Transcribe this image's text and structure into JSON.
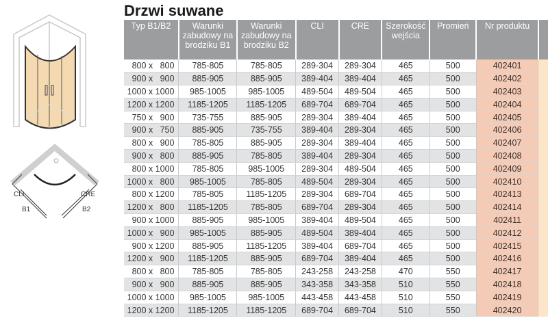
{
  "title": "Drzwi suwane",
  "diagram_labels": {
    "cli": "CLI",
    "cre": "CRE",
    "b1": "B1",
    "b2": "B2"
  },
  "colors": {
    "header": "#9c9d9f",
    "row_alt": "#e2e3e5",
    "product_col": "#f6cbb6",
    "extra_col": "#fde5c9",
    "glass": "#f5d9b0"
  },
  "headers": [
    "Typ B1/B2",
    "Warunki zabudowy na brodziku B1",
    "Warunki zabudowy na brodziku B2",
    "CLI",
    "CRE",
    "Szerokość wejścia",
    "Promień",
    "Nr produktu"
  ],
  "rows": [
    [
      "800 x   800",
      "785-805",
      "785-805",
      "289-304",
      "289-304",
      "465",
      "500",
      "402401"
    ],
    [
      "900 x   900",
      "885-905",
      "885-905",
      "389-404",
      "389-404",
      "465",
      "500",
      "402402"
    ],
    [
      "1000 x 1000",
      "985-1005",
      "985-1005",
      "489-504",
      "489-504",
      "465",
      "500",
      "402403"
    ],
    [
      "1200 x 1200",
      "1185-1205",
      "1185-1205",
      "689-704",
      "689-704",
      "465",
      "500",
      "402404"
    ],
    [
      "750 x   900",
      "735-755",
      "885-905",
      "289-304",
      "389-404",
      "465",
      "500",
      "402405"
    ],
    [
      "900 x   750",
      "885-905",
      "735-755",
      "389-404",
      "289-304",
      "465",
      "500",
      "402406"
    ],
    [
      "800 x   900",
      "785-805",
      "885-905",
      "289-304",
      "389-404",
      "465",
      "500",
      "402407"
    ],
    [
      "900 x   800",
      "885-905",
      "785-805",
      "389-404",
      "289-304",
      "465",
      "500",
      "402408"
    ],
    [
      "800 x 1000",
      "785-805",
      "985-1005",
      "289-304",
      "489-504",
      "465",
      "500",
      "402409"
    ],
    [
      "1000 x   800",
      "985-1005",
      "785-805",
      "489-504",
      "289-304",
      "465",
      "500",
      "402410"
    ],
    [
      "800 x 1200",
      "785-805",
      "1185-1205",
      "289-304",
      "689-704",
      "465",
      "500",
      "402413"
    ],
    [
      "1200 x   800",
      "1185-1205",
      "785-805",
      "689-704",
      "289-304",
      "465",
      "500",
      "402414"
    ],
    [
      "900 x 1000",
      "885-905",
      "985-1005",
      "389-404",
      "489-504",
      "465",
      "500",
      "402411"
    ],
    [
      "1000 x   900",
      "985-1005",
      "885-905",
      "489-504",
      "389-404",
      "465",
      "500",
      "402412"
    ],
    [
      "900 x 1200",
      "885-905",
      "1185-1205",
      "389-404",
      "689-704",
      "465",
      "500",
      "402415"
    ],
    [
      "1200 x   900",
      "1185-1205",
      "885-905",
      "689-704",
      "389-404",
      "465",
      "500",
      "402416"
    ],
    [
      "800 x   800",
      "785-805",
      "785-805",
      "243-258",
      "243-258",
      "470",
      "550",
      "402417"
    ],
    [
      "900 x   900",
      "885-905",
      "885-905",
      "343-358",
      "343-358",
      "510",
      "550",
      "402418"
    ],
    [
      "1000 x 1000",
      "985-1005",
      "985-1005",
      "443-458",
      "443-458",
      "510",
      "550",
      "402419"
    ],
    [
      "1200 x 1200",
      "1185-1205",
      "1185-1205",
      "689-704",
      "689-704",
      "510",
      "550",
      "402420"
    ]
  ]
}
